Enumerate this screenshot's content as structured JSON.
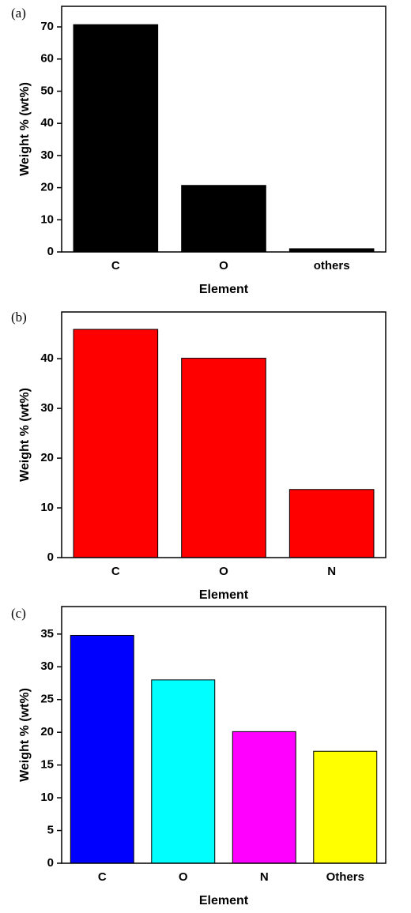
{
  "chart_data": [
    {
      "type": "bar",
      "panel_label": "(a)",
      "x_label": "Element",
      "y_label": "Weight % (wt%)",
      "categories": [
        "C",
        "O",
        "others"
      ],
      "values": [
        70.7,
        20.7,
        1.0
      ],
      "color": "#000000",
      "ylim": [
        0,
        76.4
      ],
      "yticks": [
        0,
        10,
        20,
        30,
        40,
        50,
        60,
        70
      ]
    },
    {
      "type": "bar",
      "panel_label": "(b)",
      "x_label": "Element",
      "y_label": "Weight % (wt%)",
      "categories": [
        "C",
        "O",
        "N"
      ],
      "values": [
        45.9,
        40.1,
        13.7
      ],
      "color": "#ff0000",
      "ylim": [
        0,
        49.4
      ],
      "yticks": [
        0,
        10,
        20,
        30,
        40
      ]
    },
    {
      "type": "bar",
      "panel_label": "(c)",
      "x_label": "Element",
      "y_label": "Weight % (wt%)",
      "categories": [
        "C",
        "O",
        "N",
        "Others"
      ],
      "values": [
        34.8,
        28.0,
        20.1,
        17.1
      ],
      "colors": [
        "#0000ff",
        "#00ffff",
        "#ff00ff",
        "#ffff00"
      ],
      "ylim": [
        0,
        39.2
      ],
      "yticks": [
        0,
        5,
        10,
        15,
        20,
        25,
        30,
        35
      ]
    }
  ]
}
